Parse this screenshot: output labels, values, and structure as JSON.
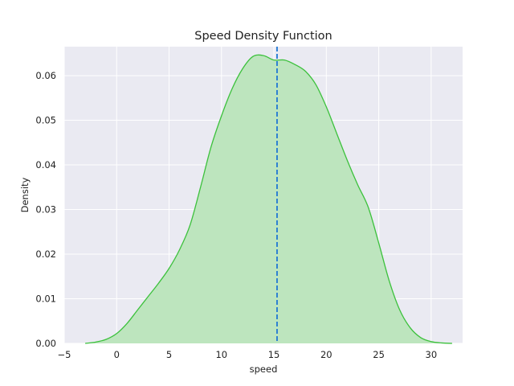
{
  "chart_data": {
    "type": "area",
    "title": "Speed Density Function",
    "xlabel": "speed",
    "ylabel": "Density",
    "xlim": [
      -5,
      33
    ],
    "ylim": [
      0,
      0.0665
    ],
    "xticks": [
      -5,
      0,
      5,
      10,
      15,
      20,
      25,
      30
    ],
    "xtick_labels": [
      "−5",
      "0",
      "5",
      "10",
      "15",
      "20",
      "25",
      "30"
    ],
    "yticks": [
      0,
      0.01,
      0.02,
      0.03,
      0.04,
      0.05,
      0.06
    ],
    "ytick_labels": [
      "0.00",
      "0.01",
      "0.02",
      "0.03",
      "0.04",
      "0.05",
      "0.06"
    ],
    "grid": true,
    "background": "#eaeaf2",
    "grid_color": "#ffffff",
    "series": [
      {
        "kind": "kde",
        "line_color": "#3cc13c",
        "fill_color": "#bde5be",
        "x": [
          -3.0,
          -2.0,
          -1.0,
          0.0,
          1.0,
          2.0,
          3.0,
          4.0,
          5.0,
          6.0,
          7.0,
          8.0,
          9.0,
          10.0,
          11.0,
          12.0,
          13.0,
          14.0,
          15.0,
          16.0,
          17.0,
          18.0,
          19.0,
          20.0,
          21.0,
          22.0,
          23.0,
          24.0,
          25.0,
          26.0,
          27.0,
          28.0,
          29.0,
          30.0,
          31.0,
          32.0
        ],
        "y": [
          0.0,
          0.0003,
          0.0009,
          0.0022,
          0.0045,
          0.0075,
          0.0105,
          0.0135,
          0.0168,
          0.021,
          0.0265,
          0.035,
          0.044,
          0.051,
          0.057,
          0.0615,
          0.0643,
          0.0645,
          0.0635,
          0.0635,
          0.0625,
          0.061,
          0.058,
          0.053,
          0.047,
          0.041,
          0.0355,
          0.0305,
          0.0225,
          0.014,
          0.0075,
          0.0035,
          0.0013,
          0.0004,
          0.0001,
          0.0
        ]
      }
    ],
    "vline": {
      "x": 15.3,
      "style": "dashed",
      "color": "#1f77d4"
    }
  }
}
